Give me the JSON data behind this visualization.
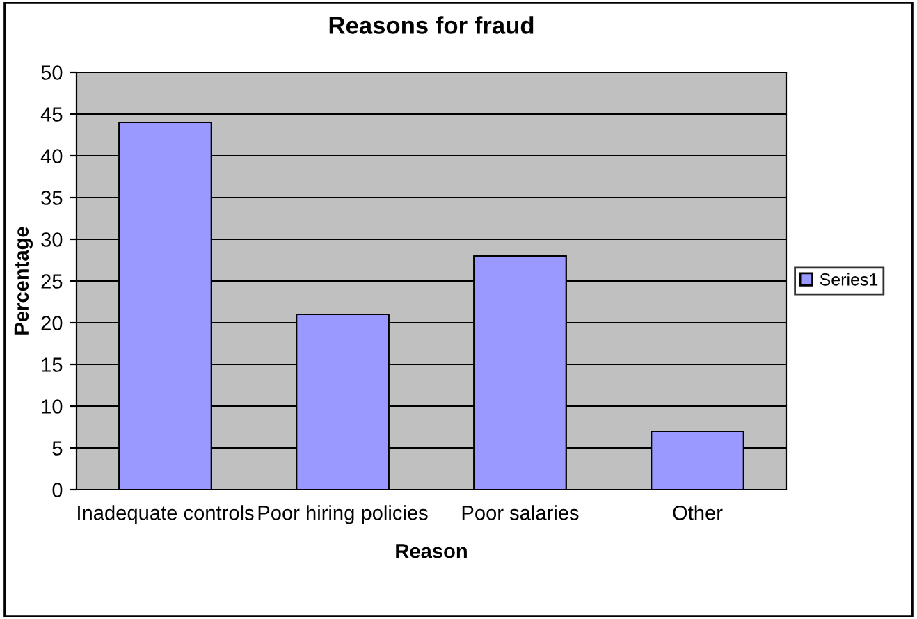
{
  "chart_data": {
    "type": "bar",
    "title": "Reasons for fraud",
    "xlabel": "Reason",
    "ylabel": "Percentage",
    "categories": [
      "Inadequate controls",
      "Poor hiring policies",
      "Poor salaries",
      "Other"
    ],
    "series": [
      {
        "name": "Series1",
        "color": "#9999ff",
        "values": [
          44,
          21,
          28,
          7
        ]
      }
    ],
    "ylim": [
      0,
      50
    ],
    "yticks": [
      0,
      5,
      10,
      15,
      20,
      25,
      30,
      35,
      40,
      45,
      50
    ],
    "grid": "y",
    "legend": "right"
  }
}
